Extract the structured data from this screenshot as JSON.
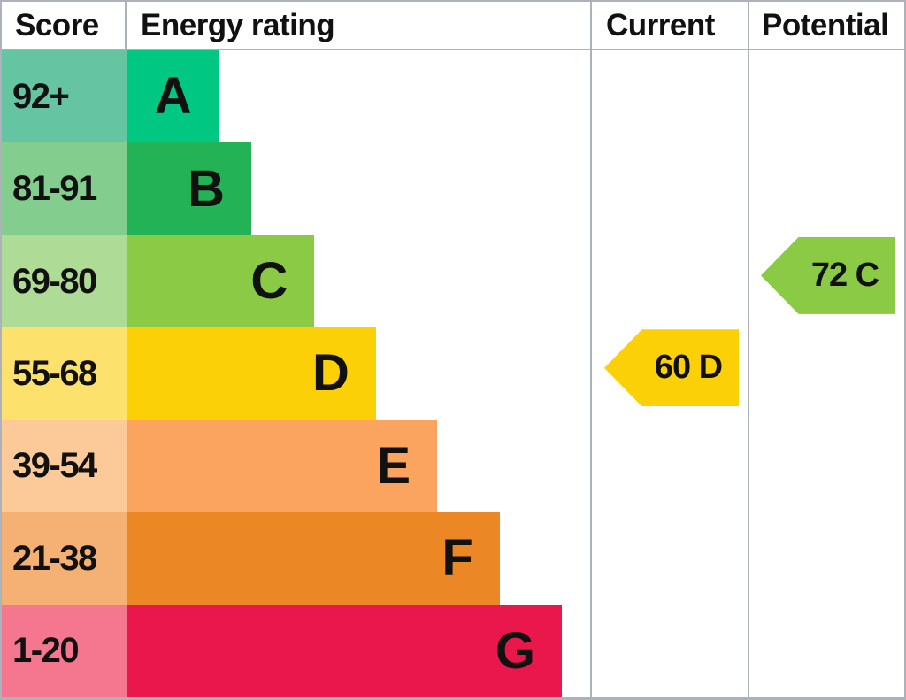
{
  "header": {
    "score": "Score",
    "energy_rating": "Energy rating",
    "current": "Current",
    "potential": "Potential"
  },
  "colors": {
    "border": "#adb1b9",
    "background": "#ffffff",
    "text": "#111111"
  },
  "chart_data": {
    "type": "bar",
    "orientation": "horizontal",
    "title": "Energy rating",
    "columns": [
      "Score",
      "Energy rating",
      "Current",
      "Potential"
    ],
    "categories": [
      "A",
      "B",
      "C",
      "D",
      "E",
      "F",
      "G"
    ],
    "score_ranges": [
      "92+",
      "81-91",
      "69-80",
      "55-68",
      "39-54",
      "21-38",
      "1-20"
    ],
    "bar_length_pct": [
      19.8,
      26.9,
      40.5,
      53.8,
      67.0,
      80.5,
      93.9
    ],
    "band_colors": [
      "#00c781",
      "#24b256",
      "#8bca44",
      "#fcd006",
      "#faa460",
      "#eb8724",
      "#e9174b"
    ],
    "score_cell_colors": [
      "#65c5a2",
      "#83ce8e",
      "#aedc96",
      "#fce26d",
      "#fbca98",
      "#f4b173",
      "#f4778f"
    ],
    "grid": false,
    "legend": false,
    "markers": [
      {
        "name": "Current",
        "label": "60 D",
        "value": 60,
        "band": "D",
        "band_index": 3,
        "color": "#fcd006"
      },
      {
        "name": "Potential",
        "label": "72 C",
        "value": 72,
        "band": "C",
        "band_index": 2,
        "color": "#8bca44"
      }
    ]
  }
}
